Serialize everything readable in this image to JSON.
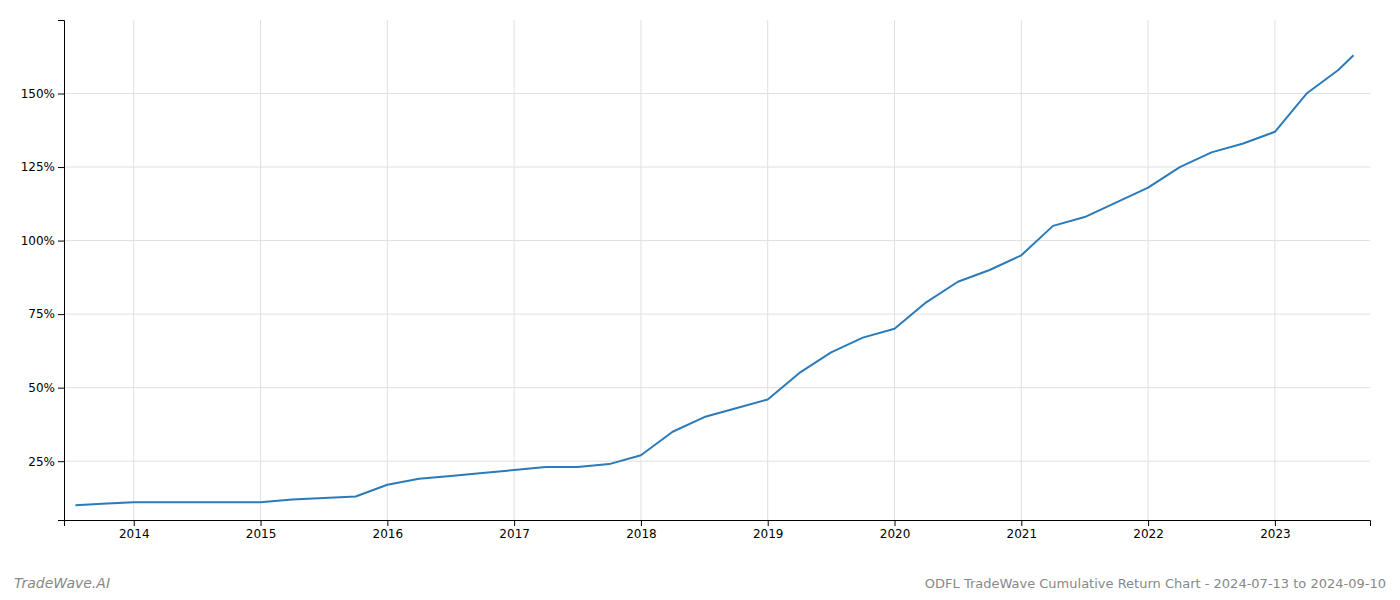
{
  "chart_data": {
    "type": "line",
    "title": "ODFL TradeWave Cumulative Return Chart - 2024-07-13 to 2024-09-10",
    "annotations": [
      "TradeWave.AI"
    ],
    "color": "#2b7bba",
    "grid": true,
    "x": [
      2013.54,
      2013.75,
      2014.0,
      2014.25,
      2014.5,
      2014.75,
      2015.0,
      2015.25,
      2015.5,
      2015.75,
      2016.0,
      2016.25,
      2016.5,
      2016.75,
      2017.0,
      2017.25,
      2017.5,
      2017.75,
      2018.0,
      2018.25,
      2018.5,
      2018.75,
      2019.0,
      2019.25,
      2019.5,
      2019.75,
      2020.0,
      2020.25,
      2020.5,
      2020.75,
      2021.0,
      2021.25,
      2021.5,
      2021.75,
      2022.0,
      2022.25,
      2022.5,
      2022.75,
      2023.0,
      2023.25,
      2023.5,
      2023.62
    ],
    "values": [
      10,
      10.5,
      11,
      11,
      11,
      11,
      11,
      12,
      12.5,
      13,
      17,
      19,
      20,
      21,
      22,
      23,
      23,
      24,
      27,
      35,
      40,
      43,
      46,
      55,
      62,
      67,
      70,
      79,
      86,
      90,
      95,
      105,
      108,
      113,
      118,
      125,
      130,
      133,
      137,
      150,
      158,
      163
    ],
    "xlim": [
      2013.45,
      2023.75
    ],
    "xticks": [
      2014,
      2015,
      2016,
      2017,
      2018,
      2019,
      2020,
      2021,
      2022,
      2023
    ],
    "ylim": [
      5,
      175
    ],
    "yticks": [
      {
        "value": 25,
        "label": "25%"
      },
      {
        "value": 50,
        "label": "50%"
      },
      {
        "value": 75,
        "label": "75%"
      },
      {
        "value": 100,
        "label": "100%"
      },
      {
        "value": 125,
        "label": "125%"
      },
      {
        "value": 150,
        "label": "150%"
      }
    ]
  }
}
